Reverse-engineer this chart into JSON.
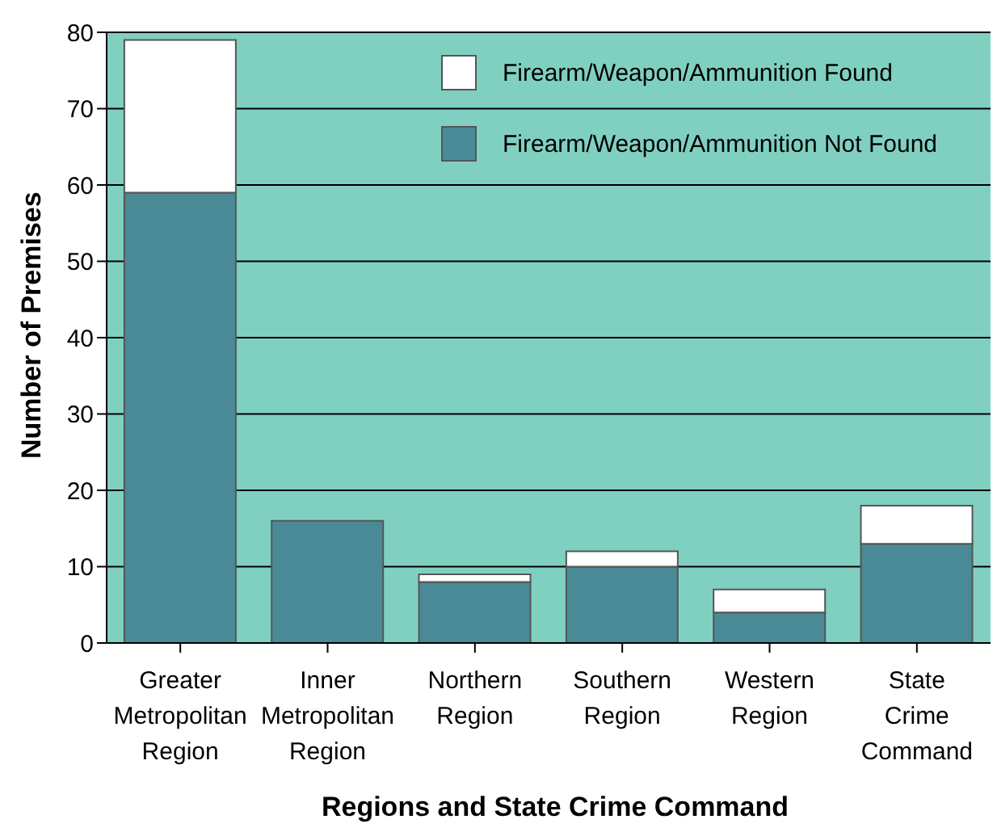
{
  "chart_data": {
    "type": "bar",
    "stacked": true,
    "xlabel": "Regions and State Crime Command",
    "ylabel": "Number of Premises",
    "categories": [
      "Greater Metropolitan Region",
      "Inner Metropolitan Region",
      "Northern Region",
      "Southern Region",
      "Western Region",
      "State Crime Command"
    ],
    "series": [
      {
        "name": "Firearm/Weapon/Ammunition Not Found",
        "color": "#4a8a96",
        "values": [
          59,
          16,
          8,
          10,
          4,
          13
        ]
      },
      {
        "name": "Firearm/Weapon/Ammunition Found",
        "color": "#ffffff",
        "values": [
          20,
          0,
          1,
          2,
          3,
          5
        ]
      }
    ],
    "ylim": [
      0,
      80
    ],
    "yticks": [
      0,
      10,
      20,
      30,
      40,
      50,
      60,
      70,
      80
    ],
    "grid": "y",
    "legend": "top right"
  }
}
